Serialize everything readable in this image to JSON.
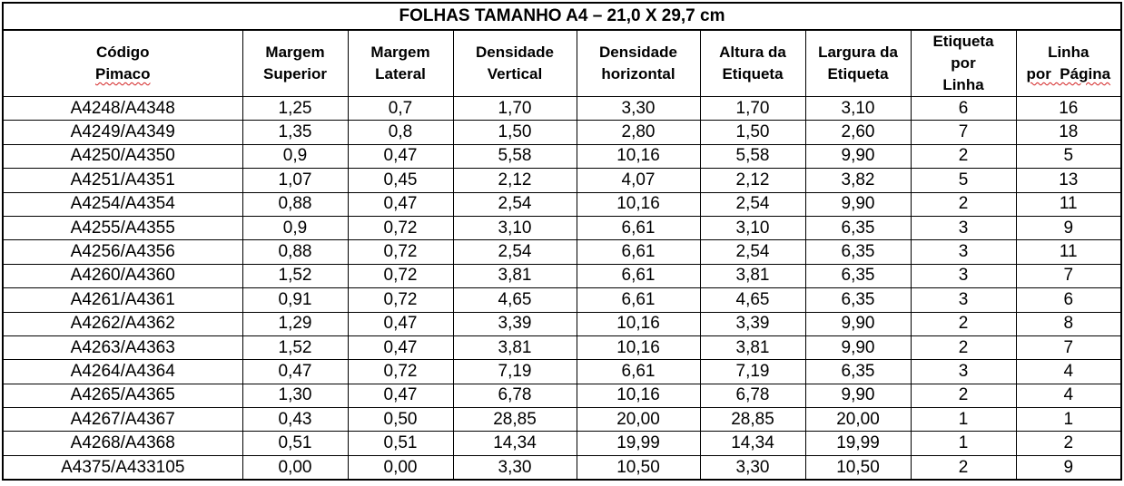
{
  "title": "FOLHAS TAMANHO A4 – 21,0 X 29,7 cm",
  "headers": [
    {
      "line1": "Código",
      "line2": "Pimaco",
      "line3": ""
    },
    {
      "line1": "Margem",
      "line2": "Superior",
      "line3": ""
    },
    {
      "line1": "Margem",
      "line2": "Lateral",
      "line3": ""
    },
    {
      "line1": "Densidade",
      "line2": "Vertical",
      "line3": ""
    },
    {
      "line1": "Densidade",
      "line2": "horizontal",
      "line3": ""
    },
    {
      "line1": "Altura da",
      "line2": "Etiqueta",
      "line3": ""
    },
    {
      "line1": "Largura da",
      "line2": "Etiqueta",
      "line3": ""
    },
    {
      "line1": "Etiqueta",
      "line2": "por",
      "line3": "Linha"
    },
    {
      "line1": "Linha",
      "line2": "por  Página",
      "line3": ""
    }
  ],
  "rows": [
    [
      "A4248/A4348",
      "1,25",
      "0,7",
      "1,70",
      "3,30",
      "1,70",
      "3,10",
      "6",
      "16"
    ],
    [
      "A4249/A4349",
      "1,35",
      "0,8",
      "1,50",
      "2,80",
      "1,50",
      "2,60",
      "7",
      "18"
    ],
    [
      "A4250/A4350",
      "0,9",
      "0,47",
      "5,58",
      "10,16",
      "5,58",
      "9,90",
      "2",
      "5"
    ],
    [
      "A4251/A4351",
      "1,07",
      "0,45",
      "2,12",
      "4,07",
      "2,12",
      "3,82",
      "5",
      "13"
    ],
    [
      "A4254/A4354",
      "0,88",
      "0,47",
      "2,54",
      "10,16",
      "2,54",
      "9,90",
      "2",
      "11"
    ],
    [
      "A4255/A4355",
      "0,9",
      "0,72",
      "3,10",
      "6,61",
      "3,10",
      "6,35",
      "3",
      "9"
    ],
    [
      "A4256/A4356",
      "0,88",
      "0,72",
      "2,54",
      "6,61",
      "2,54",
      "6,35",
      "3",
      "11"
    ],
    [
      "A4260/A4360",
      "1,52",
      "0,72",
      "3,81",
      "6,61",
      "3,81",
      "6,35",
      "3",
      "7"
    ],
    [
      "A4261/A4361",
      "0,91",
      "0,72",
      "4,65",
      "6,61",
      "4,65",
      "6,35",
      "3",
      "6"
    ],
    [
      "A4262/A4362",
      "1,29",
      "0,47",
      "3,39",
      "10,16",
      "3,39",
      "9,90",
      "2",
      "8"
    ],
    [
      "A4263/A4363",
      "1,52",
      "0,47",
      "3,81",
      "10,16",
      "3,81",
      "9,90",
      "2",
      "7"
    ],
    [
      "A4264/A4364",
      "0,47",
      "0,72",
      "7,19",
      "6,61",
      "7,19",
      "6,35",
      "3",
      "4"
    ],
    [
      "A4265/A4365",
      "1,30",
      "0,47",
      "6,78",
      "10,16",
      "6,78",
      "9,90",
      "2",
      "4"
    ],
    [
      "A4267/A4367",
      "0,43",
      "0,50",
      "28,85",
      "20,00",
      "28,85",
      "20,00",
      "1",
      "1"
    ],
    [
      "A4268/A4368",
      "0,51",
      "0,51",
      "14,34",
      "19,99",
      "14,34",
      "19,99",
      "1",
      "2"
    ],
    [
      "A4375/A433105",
      "0,00",
      "0,00",
      "3,30",
      "10,50",
      "3,30",
      "10,50",
      "2",
      "9"
    ]
  ]
}
